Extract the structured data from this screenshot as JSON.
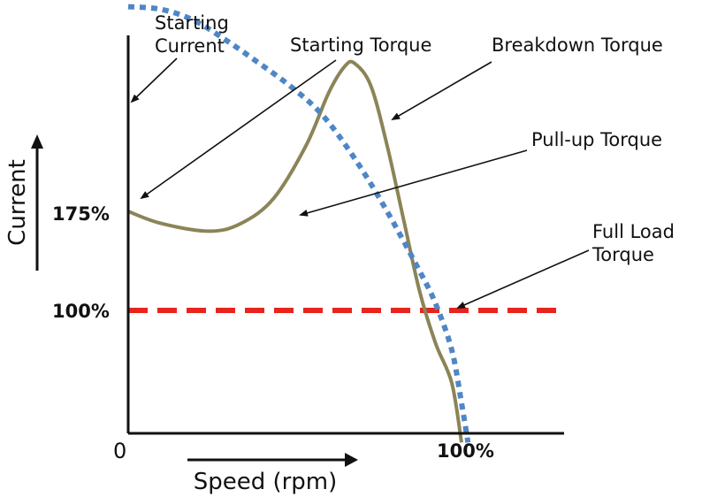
{
  "chart_data": {
    "type": "line",
    "title": "",
    "xlabel": "Speed (rpm)",
    "ylabel": "Current",
    "x_ticks": [
      {
        "label": "0",
        "value": 0
      },
      {
        "label": "100%",
        "value": 100
      }
    ],
    "y_ticks": [
      {
        "label": "175%",
        "value": 175
      },
      {
        "label": "100%",
        "value": 100
      }
    ],
    "xlim": [
      0,
      133
    ],
    "ylim": [
      0,
      350
    ],
    "grid": false,
    "legend": "none",
    "series": [
      {
        "style": "dotted",
        "color": "#4f86c6",
        "x": [
          0,
          10,
          20,
          30,
          40,
          50,
          60,
          70,
          80,
          90,
          95,
          100,
          103,
          105
        ],
        "y": [
          330,
          328,
          320,
          305,
          288,
          270,
          248,
          215,
          175,
          130,
          105,
          70,
          30,
          0
        ]
      },
      {
        "style": "solid",
        "color": "#8b8457",
        "x": [
          0,
          10,
          25,
          35,
          45,
          55,
          62,
          67,
          70,
          75,
          80,
          85,
          90,
          95,
          100,
          103
        ],
        "y": [
          175,
          166,
          160,
          166,
          185,
          225,
          265,
          285,
          287,
          270,
          225,
          170,
          115,
          75,
          45,
          0
        ]
      },
      {
        "style": "dashed",
        "color": "#e8241c",
        "x": [
          0,
          135
        ],
        "y": [
          100,
          100
        ]
      }
    ],
    "annotations": [
      {
        "text": [
          "Starting",
          "Current"
        ],
        "target_x": 0,
        "target_y": 330
      },
      {
        "text": [
          "Starting Torque"
        ],
        "target_x": 0,
        "target_y": 188
      },
      {
        "text": [
          "Breakdown Torque"
        ],
        "target_x": 80,
        "target_y": 270
      },
      {
        "text": [
          "Pull-up Torque"
        ],
        "target_x": 52,
        "target_y": 180
      },
      {
        "text": [
          "Full Load",
          "Torque"
        ],
        "target_x": 101,
        "target_y": 100
      }
    ],
    "colors": {
      "axis": "#111111",
      "current": "#4f86c6",
      "torque": "#8b8457",
      "full_load": "#e8241c"
    }
  }
}
